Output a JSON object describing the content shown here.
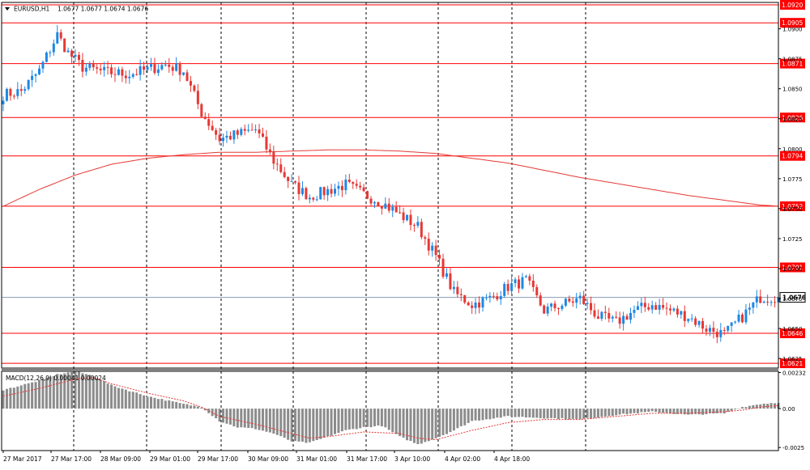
{
  "header": {
    "symbol_timeframe": "EURUSD,H1",
    "ohlc": "1.0677 1.0677 1.0674 1.0676"
  },
  "macd": {
    "label": "MACD(12,26,9) 0.00041 0.00024",
    "ticks": [
      "0.00232",
      "0.00",
      "-0.0025"
    ]
  },
  "colors": {
    "bull": "#1e88e5",
    "bear": "#e53935",
    "level_line": "#ff0000",
    "ma_line": "#e53935",
    "price_line": "#8a9bb5",
    "histogram": "#8c8c8c",
    "signal": "#e53935",
    "grid": "#000000"
  },
  "chart_data": [
    {
      "type": "candlestick",
      "title": "EURUSD,H1",
      "ylim": [
        1.0617,
        1.0922
      ],
      "y_ticks": [
        "1.0900",
        "1.0875",
        "1.0850",
        "1.0825",
        "1.0800",
        "1.0775",
        "1.0750",
        "1.0725",
        "1.0700",
        "1.0675",
        "1.0650",
        "1.0625"
      ],
      "x_ticks": [
        "27 Mar 2017",
        "27 Mar 17:00",
        "28 Mar 09:00",
        "29 Mar 01:00",
        "29 Mar 17:00",
        "30 Mar 09:00",
        "31 Mar 01:00",
        "31 Mar 17:00",
        "3 Apr 10:00",
        "4 Apr 02:00",
        "4 Apr 18:00"
      ],
      "horizontal_levels": [
        "1.0920",
        "1.0905",
        "1.0871",
        "1.0826",
        "1.0794",
        "1.0752",
        "1.0701",
        "1.0646",
        "1.0621"
      ],
      "current_price": "1.0676",
      "moving_average": {
        "x": [
          0,
          10,
          20,
          30,
          40,
          50,
          60,
          70,
          80,
          90,
          100,
          110,
          120,
          130,
          140,
          150,
          160,
          170,
          180,
          190,
          200,
          210,
          215
        ],
        "y": [
          1.0752,
          1.0766,
          1.0778,
          1.0787,
          1.0792,
          1.0795,
          1.0797,
          1.0797,
          1.0798,
          1.0799,
          1.0799,
          1.0798,
          1.0796,
          1.0792,
          1.0788,
          1.0782,
          1.0776,
          1.0771,
          1.0766,
          1.0761,
          1.0757,
          1.0753,
          1.0752
        ]
      },
      "key_prices": {
        "x": [
          0,
          5,
          10,
          15,
          18,
          22,
          28,
          35,
          40,
          45,
          50,
          55,
          60,
          65,
          70,
          75,
          80,
          85,
          90,
          95,
          100,
          105,
          110,
          115,
          120,
          125,
          130,
          135,
          140,
          145,
          150,
          155,
          160,
          165,
          170,
          175,
          180,
          185,
          190,
          195,
          200,
          205,
          210,
          215
        ],
        "y": [
          1.0845,
          1.0848,
          1.0865,
          1.0895,
          1.088,
          1.0868,
          1.0864,
          1.0862,
          1.0866,
          1.087,
          1.0865,
          1.083,
          1.0808,
          1.0812,
          1.0816,
          1.079,
          1.077,
          1.076,
          1.0765,
          1.077,
          1.0762,
          1.0755,
          1.0745,
          1.0735,
          1.071,
          1.068,
          1.067,
          1.0675,
          1.0685,
          1.069,
          1.0665,
          1.067,
          1.0675,
          1.066,
          1.0655,
          1.0665,
          1.067,
          1.0665,
          1.066,
          1.065,
          1.0645,
          1.066,
          1.0676,
          1.0676
        ]
      }
    },
    {
      "type": "macd",
      "title": "MACD(12,26,9) 0.00041 0.00024",
      "ylim": [
        -0.0027,
        0.0024
      ],
      "histogram_anchors": {
        "x": [
          0,
          10,
          15,
          20,
          25,
          30,
          40,
          50,
          55,
          60,
          65,
          70,
          75,
          80,
          85,
          90,
          95,
          100,
          105,
          110,
          115,
          120,
          125,
          130,
          140,
          150,
          160,
          170,
          180,
          190,
          200,
          205,
          210,
          215
        ],
        "y": [
          0.0012,
          0.0018,
          0.0022,
          0.0024,
          0.0021,
          0.0015,
          0.0008,
          0.0003,
          0.0001,
          -0.0008,
          -0.0012,
          -0.0013,
          -0.0016,
          -0.0021,
          -0.0022,
          -0.0018,
          -0.0014,
          -0.0012,
          -0.0011,
          -0.0018,
          -0.0023,
          -0.0019,
          -0.0014,
          -0.0008,
          -0.0005,
          -0.0006,
          -0.0007,
          -0.0004,
          -0.0002,
          -0.0004,
          -0.0003,
          0.0001,
          0.0003,
          0.0004
        ]
      },
      "signal_anchors": {
        "x": [
          0,
          10,
          15,
          20,
          25,
          30,
          40,
          50,
          55,
          60,
          70,
          80,
          85,
          90,
          100,
          110,
          115,
          120,
          130,
          140,
          150,
          160,
          170,
          180,
          190,
          200,
          205,
          210,
          215
        ],
        "y": [
          0.0008,
          0.0013,
          0.0016,
          0.0019,
          0.002,
          0.0016,
          0.001,
          0.0005,
          0.0001,
          -0.0005,
          -0.001,
          -0.0016,
          -0.0019,
          -0.0018,
          -0.0015,
          -0.0016,
          -0.0019,
          -0.002,
          -0.0014,
          -0.0009,
          -0.0007,
          -0.0007,
          -0.0005,
          -0.0003,
          -0.0003,
          -0.0002,
          -0.0001,
          0.0001,
          0.0002
        ]
      }
    }
  ]
}
